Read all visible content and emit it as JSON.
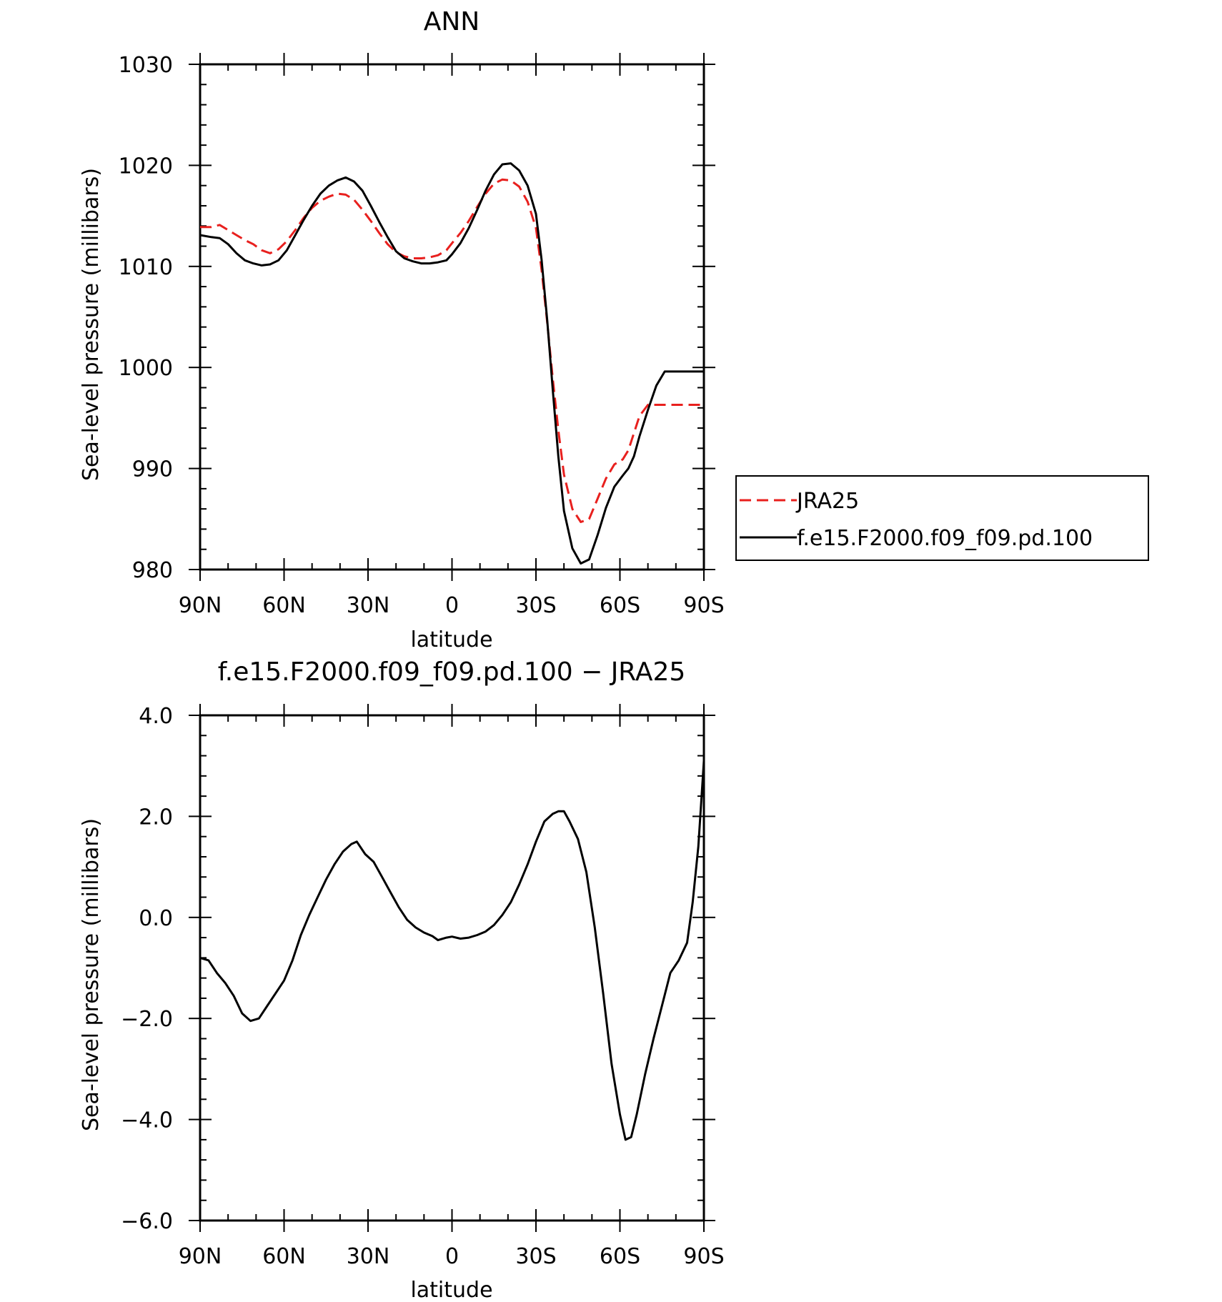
{
  "chart_data": [
    {
      "type": "line",
      "title": "ANN",
      "xlabel": "latitude",
      "ylabel": "Sea-level pressure (millibars)",
      "xlim": [
        90,
        -90
      ],
      "ylim": [
        980,
        1030
      ],
      "x_ticks": [
        90,
        60,
        30,
        0,
        -30,
        -60,
        -90
      ],
      "x_tick_labels": [
        "90N",
        "60N",
        "30N",
        "0",
        "30S",
        "60S",
        "90S"
      ],
      "y_ticks": [
        980,
        990,
        1000,
        1010,
        1020,
        1030
      ],
      "y_tick_labels": [
        "980",
        "990",
        "1000",
        "1010",
        "1020",
        "1030"
      ],
      "legend_position": "right",
      "series": [
        {
          "name": "JRA25",
          "color": "#e8201e",
          "dash": true,
          "x": [
            90,
            86,
            83,
            80,
            77,
            74,
            71,
            68,
            65,
            62,
            59,
            56,
            53,
            50,
            47,
            44,
            41,
            38,
            35,
            32,
            29,
            26,
            23,
            20,
            17,
            14,
            11,
            8,
            5,
            2,
            0,
            -3,
            -6,
            -9,
            -12,
            -15,
            -18,
            -21,
            -24,
            -27,
            -30,
            -32,
            -34,
            -36,
            -38,
            -40,
            -43,
            -46,
            -49,
            -52,
            -55,
            -58,
            -61,
            -63,
            -65,
            -67,
            -70,
            -73,
            -76,
            -79,
            -82,
            -85,
            -88,
            -90
          ],
          "y": [
            1013.9,
            1013.9,
            1014.1,
            1013.6,
            1013.1,
            1012.6,
            1012.2,
            1011.6,
            1011.3,
            1011.7,
            1012.5,
            1013.6,
            1014.8,
            1015.8,
            1016.5,
            1016.9,
            1017.2,
            1017.1,
            1016.6,
            1015.6,
            1014.5,
            1013.3,
            1012.2,
            1011.4,
            1011.0,
            1010.8,
            1010.8,
            1010.9,
            1011.1,
            1011.6,
            1012.3,
            1013.3,
            1014.5,
            1015.9,
            1017.2,
            1018.2,
            1018.6,
            1018.5,
            1017.9,
            1016.4,
            1013.8,
            1009.7,
            1004.5,
            998.9,
            993.8,
            989.4,
            986.0,
            984.7,
            985.0,
            987.0,
            989.0,
            990.4,
            990.9,
            991.8,
            993.5,
            995.2,
            996.3,
            996.3,
            996.3,
            996.3,
            996.3,
            996.3,
            996.3,
            996.3
          ]
        },
        {
          "name": "f.e15.F2000.f09_f09.pd.100",
          "color": "#000000",
          "dash": false,
          "x": [
            90,
            86,
            83,
            80,
            77,
            74,
            71,
            68,
            65,
            62,
            59,
            56,
            53,
            50,
            47,
            44,
            41,
            38,
            35,
            32,
            29,
            26,
            23,
            20,
            17,
            14,
            11,
            8,
            5,
            2,
            0,
            -3,
            -6,
            -9,
            -12,
            -15,
            -18,
            -21,
            -24,
            -27,
            -30,
            -32,
            -34,
            -36,
            -38,
            -40,
            -43,
            -46,
            -49,
            -52,
            -55,
            -58,
            -61,
            -63,
            -65,
            -67,
            -70,
            -73,
            -76,
            -79,
            -82,
            -85,
            -88,
            -90
          ],
          "y": [
            1013.1,
            1012.9,
            1012.8,
            1012.2,
            1011.3,
            1010.6,
            1010.3,
            1010.1,
            1010.2,
            1010.6,
            1011.6,
            1013.1,
            1014.6,
            1016.0,
            1017.2,
            1018.0,
            1018.5,
            1018.8,
            1018.4,
            1017.5,
            1016.0,
            1014.4,
            1012.9,
            1011.5,
            1010.8,
            1010.5,
            1010.3,
            1010.3,
            1010.4,
            1010.6,
            1011.2,
            1012.3,
            1013.8,
            1015.6,
            1017.5,
            1019.1,
            1020.1,
            1020.2,
            1019.5,
            1018.0,
            1015.2,
            1010.7,
            1004.7,
            997.8,
            991.2,
            985.8,
            982.1,
            980.6,
            981.0,
            983.4,
            986.1,
            988.2,
            989.3,
            990.0,
            991.2,
            993.2,
            995.8,
            998.2,
            999.6,
            999.6,
            999.6,
            999.6,
            999.6,
            999.6
          ]
        }
      ]
    },
    {
      "type": "line",
      "title": "f.e15.F2000.f09_f09.pd.100 − JRA25",
      "xlabel": "latitude",
      "ylabel": "Sea-level pressure (millibars)",
      "xlim": [
        90,
        -90
      ],
      "ylim": [
        -6,
        4
      ],
      "x_ticks": [
        90,
        60,
        30,
        0,
        -30,
        -60,
        -90
      ],
      "x_tick_labels": [
        "90N",
        "60N",
        "30N",
        "0",
        "30S",
        "60S",
        "90S"
      ],
      "y_ticks": [
        -6,
        -4,
        -2,
        0,
        2,
        4
      ],
      "y_tick_labels": [
        "−6.0",
        "−4.0",
        "−2.0",
        "0.0",
        "2.0",
        "4.0"
      ],
      "series": [
        {
          "color": "#000000",
          "dash": false,
          "x": [
            90,
            87,
            84,
            81,
            78,
            75,
            72,
            69,
            66,
            63,
            60,
            57,
            54,
            51,
            48,
            45,
            42,
            39,
            36,
            34,
            31,
            28,
            25,
            22,
            19,
            16,
            13,
            10,
            7,
            5,
            2,
            0,
            -3,
            -6,
            -9,
            -12,
            -15,
            -18,
            -21,
            -24,
            -27,
            -30,
            -33,
            -36,
            -38,
            -40,
            -42,
            -45,
            -48,
            -51,
            -54,
            -57,
            -60,
            -62,
            -64,
            -66,
            -69,
            -72,
            -75,
            -78,
            -81,
            -84,
            -86,
            -88,
            -90
          ],
          "y": [
            -0.8,
            -0.85,
            -1.1,
            -1.3,
            -1.55,
            -1.9,
            -2.05,
            -2.0,
            -1.75,
            -1.5,
            -1.25,
            -0.85,
            -0.35,
            0.05,
            0.4,
            0.75,
            1.05,
            1.3,
            1.45,
            1.5,
            1.25,
            1.1,
            0.8,
            0.5,
            0.2,
            -0.05,
            -0.2,
            -0.3,
            -0.37,
            -0.45,
            -0.4,
            -0.38,
            -0.42,
            -0.4,
            -0.35,
            -0.28,
            -0.15,
            0.05,
            0.3,
            0.65,
            1.05,
            1.5,
            1.9,
            2.05,
            2.1,
            2.1,
            1.9,
            1.55,
            0.9,
            -0.2,
            -1.5,
            -2.9,
            -3.9,
            -4.4,
            -4.35,
            -3.9,
            -3.1,
            -2.4,
            -1.75,
            -1.1,
            -0.85,
            -0.5,
            0.3,
            1.4,
            3.1
          ]
        }
      ]
    }
  ]
}
